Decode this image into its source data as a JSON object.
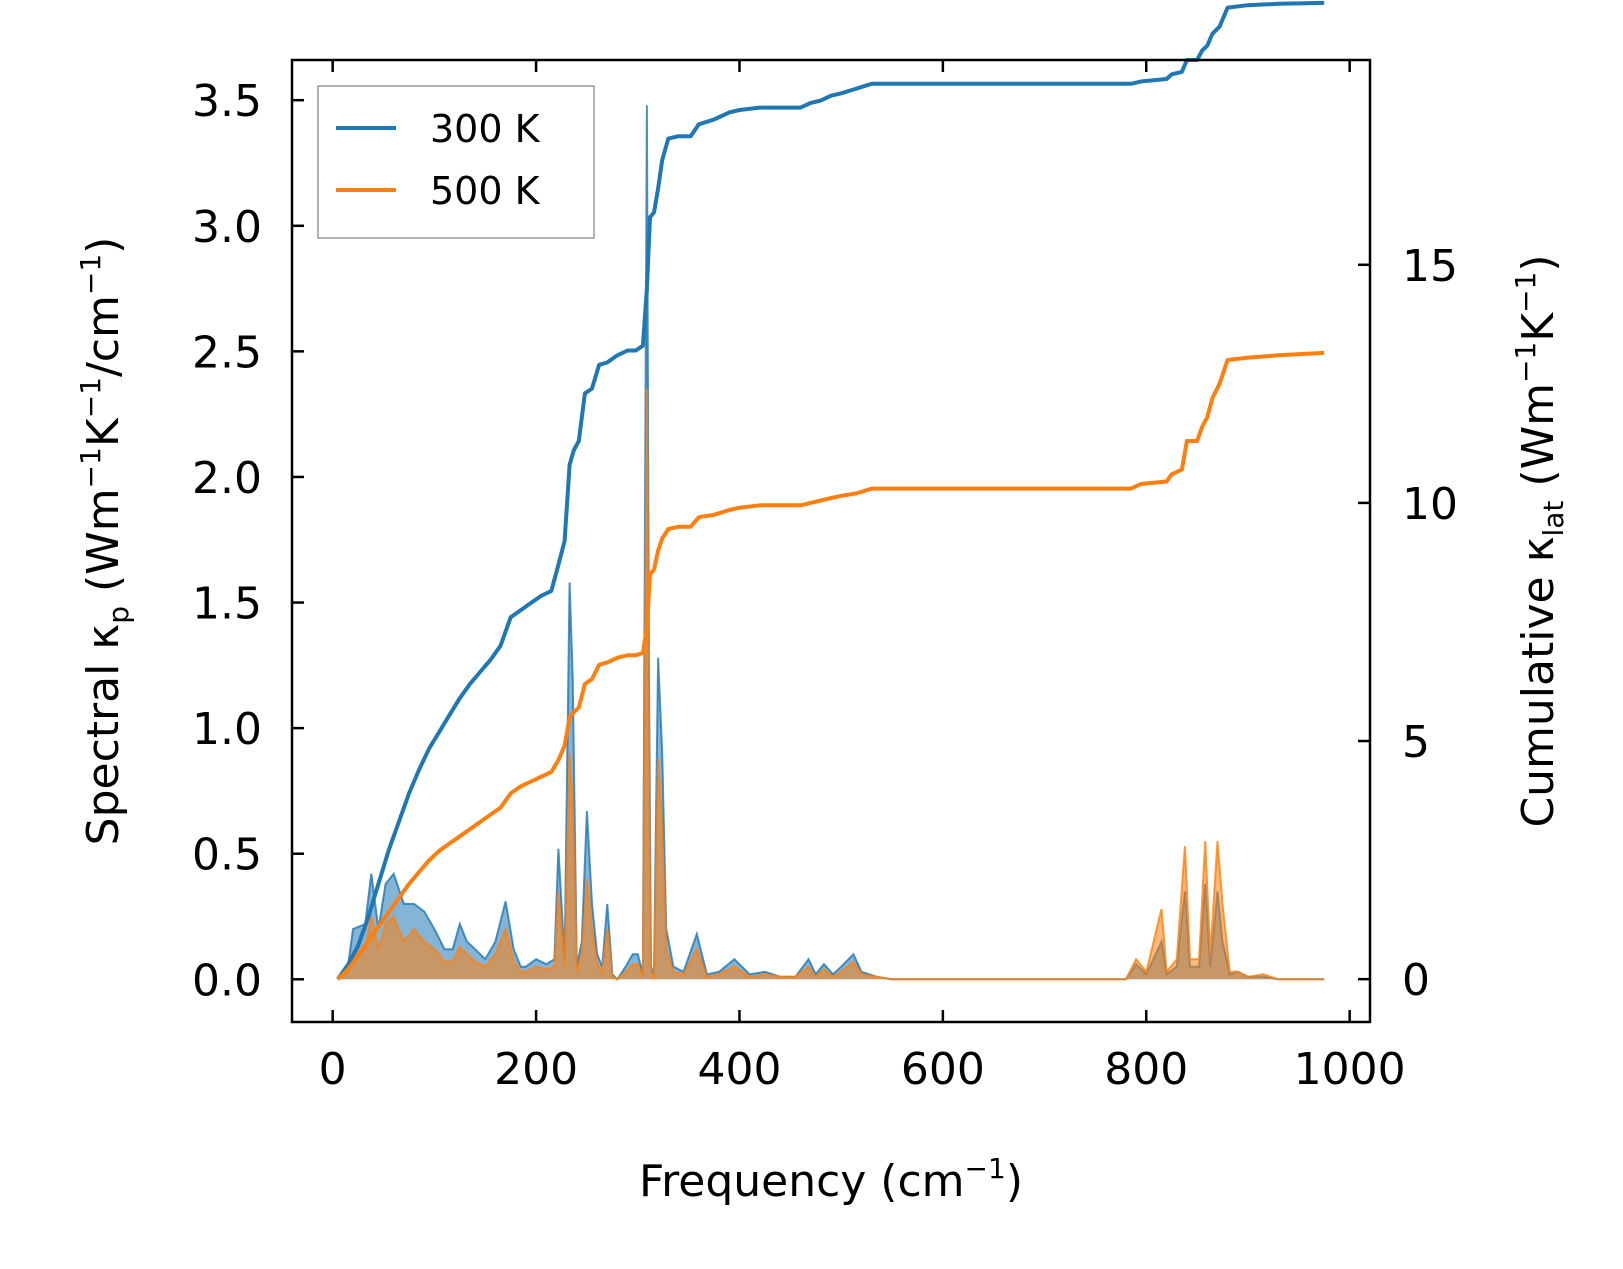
{
  "chart_data": {
    "type": "line",
    "title": "",
    "xlabel": "Frequency (cm⁻¹)",
    "xlabel_parts": {
      "base": "Frequency (cm",
      "sup": "−1",
      "tail": ")"
    },
    "ylabel_left_parts": {
      "pre": "Spectral κ",
      "sub": "p",
      "mid1": " (Wm",
      "sup1": "−1",
      "mid2": "K",
      "sup2": "−1",
      "mid3": "/cm",
      "sup3": "−1",
      "end": ")"
    },
    "ylabel_right_parts": {
      "pre": "Cumulative κ",
      "sub": "lat",
      "mid1": " (Wm",
      "sup1": "−1",
      "mid2": "K",
      "sup2": "−1",
      "end": ")"
    },
    "xlim": [
      -40,
      1020
    ],
    "ylim_left": [
      -0.17,
      3.66
    ],
    "ylim_right": [
      -0.9,
      19.3
    ],
    "xticks": [
      0,
      200,
      400,
      600,
      800,
      1000
    ],
    "yticks_left": [
      0.0,
      0.5,
      1.0,
      1.5,
      2.0,
      2.5,
      3.0,
      3.5
    ],
    "yticks_right": [
      0,
      5,
      10,
      15
    ],
    "xtick_labels": [
      "0",
      "200",
      "400",
      "600",
      "800",
      "1000"
    ],
    "ytick_left_labels": [
      "0.0",
      "0.5",
      "1.0",
      "1.5",
      "2.0",
      "2.5",
      "3.0",
      "3.5"
    ],
    "ytick_right_labels": [
      "0",
      "5",
      "10",
      "15"
    ],
    "legend": {
      "position": "top-left",
      "entries": [
        "300 K",
        "500 K"
      ]
    },
    "colors": {
      "300 K": "#1f77b4",
      "500 K": "#ff7f0e"
    },
    "spectral_series": [
      {
        "name": "300 K",
        "axis": "left",
        "x": [
          5,
          15,
          20,
          32,
          38,
          45,
          52,
          60,
          70,
          80,
          90,
          100,
          110,
          118,
          125,
          132,
          140,
          150,
          160,
          170,
          178,
          185,
          190,
          200,
          210,
          218,
          222,
          228,
          233,
          236,
          240,
          245,
          250,
          255,
          260,
          265,
          270,
          275,
          280,
          288,
          295,
          300,
          305,
          309,
          311,
          313,
          316,
          320,
          324,
          328,
          335,
          345,
          358,
          368,
          380,
          395,
          410,
          425,
          440,
          455,
          468,
          475,
          483,
          492,
          500,
          512,
          520,
          535,
          550,
          600,
          700,
          780,
          790,
          800,
          815,
          820,
          830,
          838,
          843,
          852,
          858,
          863,
          870,
          875,
          882,
          890,
          900,
          915,
          930,
          975
        ],
        "values": [
          0.0,
          0.05,
          0.2,
          0.22,
          0.42,
          0.2,
          0.38,
          0.42,
          0.3,
          0.3,
          0.27,
          0.2,
          0.12,
          0.12,
          0.22,
          0.15,
          0.12,
          0.08,
          0.15,
          0.31,
          0.12,
          0.05,
          0.05,
          0.08,
          0.06,
          0.08,
          0.52,
          0.08,
          1.58,
          1.2,
          0.05,
          0.15,
          0.67,
          0.3,
          0.1,
          0.05,
          0.3,
          0.02,
          0.0,
          0.05,
          0.1,
          0.1,
          0.02,
          3.48,
          1.2,
          0.05,
          0.02,
          1.28,
          0.9,
          0.2,
          0.05,
          0.03,
          0.18,
          0.02,
          0.03,
          0.08,
          0.02,
          0.03,
          0.01,
          0.01,
          0.08,
          0.02,
          0.06,
          0.02,
          0.05,
          0.1,
          0.03,
          0.01,
          0.0,
          0.0,
          0.0,
          0.0,
          0.06,
          0.02,
          0.15,
          0.02,
          0.05,
          0.35,
          0.05,
          0.05,
          0.38,
          0.05,
          0.35,
          0.15,
          0.02,
          0.03,
          0.01,
          0.01,
          0.0,
          0.0
        ]
      },
      {
        "name": "500 K",
        "axis": "left",
        "x": [
          5,
          15,
          20,
          32,
          38,
          45,
          52,
          60,
          70,
          80,
          90,
          100,
          110,
          118,
          125,
          132,
          140,
          150,
          160,
          170,
          178,
          185,
          190,
          200,
          210,
          218,
          222,
          228,
          233,
          236,
          240,
          245,
          250,
          255,
          260,
          265,
          270,
          275,
          280,
          288,
          295,
          300,
          305,
          309,
          311,
          313,
          316,
          320,
          324,
          328,
          335,
          345,
          358,
          368,
          380,
          395,
          410,
          425,
          440,
          455,
          468,
          475,
          483,
          492,
          500,
          512,
          520,
          535,
          550,
          600,
          700,
          780,
          790,
          800,
          815,
          820,
          830,
          838,
          843,
          852,
          858,
          863,
          870,
          875,
          882,
          890,
          900,
          915,
          930,
          975
        ],
        "values": [
          0.0,
          0.03,
          0.1,
          0.12,
          0.25,
          0.12,
          0.22,
          0.25,
          0.15,
          0.2,
          0.15,
          0.12,
          0.07,
          0.07,
          0.13,
          0.1,
          0.07,
          0.05,
          0.1,
          0.2,
          0.07,
          0.03,
          0.03,
          0.05,
          0.04,
          0.05,
          0.35,
          0.05,
          0.9,
          0.7,
          0.03,
          0.1,
          0.4,
          0.2,
          0.06,
          0.03,
          0.2,
          0.01,
          0.0,
          0.03,
          0.06,
          0.06,
          0.01,
          2.35,
          0.8,
          0.03,
          0.01,
          0.88,
          0.6,
          0.12,
          0.03,
          0.02,
          0.12,
          0.01,
          0.02,
          0.05,
          0.01,
          0.02,
          0.01,
          0.01,
          0.05,
          0.01,
          0.04,
          0.01,
          0.03,
          0.07,
          0.02,
          0.01,
          0.0,
          0.0,
          0.0,
          0.0,
          0.08,
          0.03,
          0.28,
          0.03,
          0.08,
          0.53,
          0.08,
          0.08,
          0.55,
          0.1,
          0.55,
          0.3,
          0.03,
          0.03,
          0.01,
          0.02,
          0.0,
          0.0
        ]
      }
    ],
    "cumulative_series": [
      {
        "name": "300 K",
        "axis": "right",
        "x": [
          5,
          15,
          25,
          35,
          45,
          55,
          65,
          75,
          85,
          95,
          105,
          115,
          125,
          135,
          145,
          155,
          165,
          175,
          185,
          195,
          205,
          215,
          222,
          228,
          233,
          237,
          242,
          248,
          255,
          262,
          270,
          280,
          290,
          298,
          305,
          309,
          312,
          316,
          320,
          324,
          330,
          340,
          352,
          360,
          375,
          390,
          400,
          420,
          440,
          460,
          470,
          480,
          490,
          500,
          515,
          530,
          560,
          700,
          785,
          795,
          820,
          825,
          835,
          840,
          850,
          855,
          860,
          865,
          872,
          880,
          900,
          930,
          975
        ],
        "values": [
          0.0,
          0.3,
          0.7,
          1.3,
          2.0,
          2.7,
          3.3,
          3.9,
          4.4,
          4.85,
          5.2,
          5.55,
          5.9,
          6.2,
          6.45,
          6.7,
          7.0,
          7.6,
          7.75,
          7.9,
          8.05,
          8.15,
          8.7,
          9.2,
          10.8,
          11.1,
          11.3,
          12.3,
          12.4,
          12.9,
          12.95,
          13.1,
          13.2,
          13.2,
          13.3,
          14.5,
          16.0,
          16.1,
          16.6,
          17.2,
          17.65,
          17.7,
          17.7,
          17.95,
          18.05,
          18.2,
          18.25,
          18.3,
          18.3,
          18.3,
          18.4,
          18.45,
          18.55,
          18.6,
          18.7,
          18.8,
          18.8,
          18.8,
          18.8,
          18.85,
          18.9,
          19.0,
          19.05,
          19.3,
          19.3,
          19.5,
          19.6,
          19.85,
          20.0,
          20.4,
          20.45,
          20.48,
          20.5
        ]
      },
      {
        "name": "500 K",
        "axis": "right",
        "x": [
          5,
          15,
          25,
          35,
          45,
          55,
          65,
          75,
          85,
          95,
          105,
          115,
          125,
          135,
          145,
          155,
          165,
          175,
          185,
          195,
          205,
          215,
          222,
          228,
          233,
          237,
          242,
          248,
          255,
          262,
          270,
          280,
          290,
          298,
          305,
          309,
          312,
          316,
          320,
          324,
          330,
          340,
          352,
          360,
          375,
          390,
          400,
          420,
          440,
          460,
          470,
          480,
          490,
          500,
          515,
          530,
          560,
          700,
          785,
          795,
          820,
          825,
          835,
          840,
          850,
          855,
          860,
          865,
          872,
          880,
          900,
          930,
          975
        ],
        "values": [
          0.0,
          0.2,
          0.5,
          0.8,
          1.1,
          1.4,
          1.7,
          2.0,
          2.25,
          2.5,
          2.7,
          2.85,
          3.0,
          3.15,
          3.3,
          3.45,
          3.6,
          3.9,
          4.05,
          4.15,
          4.25,
          4.35,
          4.6,
          4.9,
          5.5,
          5.6,
          5.7,
          6.2,
          6.3,
          6.6,
          6.65,
          6.75,
          6.8,
          6.8,
          6.85,
          7.4,
          8.5,
          8.6,
          9.0,
          9.25,
          9.45,
          9.5,
          9.5,
          9.7,
          9.75,
          9.85,
          9.9,
          9.95,
          9.95,
          9.95,
          10.0,
          10.05,
          10.1,
          10.15,
          10.2,
          10.3,
          10.3,
          10.3,
          10.3,
          10.4,
          10.45,
          10.6,
          10.7,
          11.3,
          11.3,
          11.6,
          11.8,
          12.2,
          12.5,
          13.0,
          13.05,
          13.1,
          13.15
        ]
      }
    ]
  }
}
